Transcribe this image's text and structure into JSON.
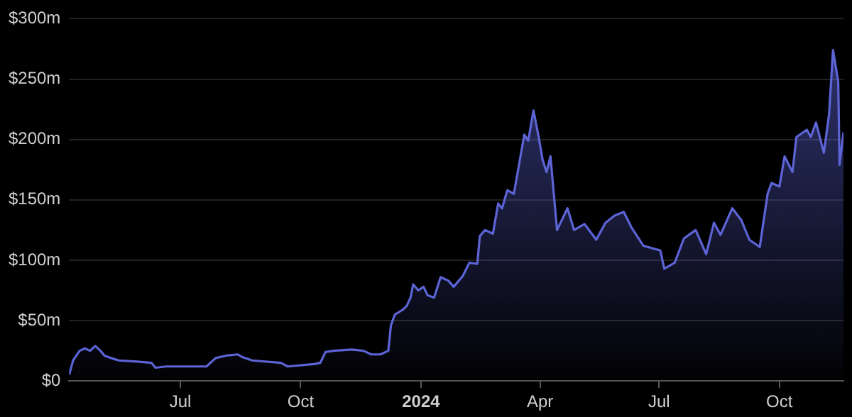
{
  "chart_data": {
    "type": "area",
    "x": [
      "2023-04-07",
      "2023-04-10",
      "2023-04-15",
      "2023-04-19",
      "2023-04-23",
      "2023-04-27",
      "2023-05-01",
      "2023-05-04",
      "2023-05-09",
      "2023-05-15",
      "2023-05-29",
      "2023-06-09",
      "2023-06-12",
      "2023-06-20",
      "2023-07-12",
      "2023-07-21",
      "2023-07-28",
      "2023-08-05",
      "2023-08-14",
      "2023-08-17",
      "2023-08-25",
      "2023-09-16",
      "2023-09-21",
      "2023-10-11",
      "2023-10-16",
      "2023-10-20",
      "2023-10-26",
      "2023-11-09",
      "2023-11-18",
      "2023-11-24",
      "2023-12-01",
      "2023-12-07",
      "2023-12-09",
      "2023-12-12",
      "2023-12-18",
      "2023-12-21",
      "2023-12-24",
      "2023-12-26",
      "2023-12-30",
      "2024-01-03",
      "2024-01-06",
      "2024-01-11",
      "2024-01-16",
      "2024-01-22",
      "2024-01-26",
      "2024-02-02",
      "2024-02-07",
      "2024-02-13",
      "2024-02-15",
      "2024-02-19",
      "2024-02-25",
      "2024-02-29",
      "2024-03-03",
      "2024-03-07",
      "2024-03-12",
      "2024-03-20",
      "2024-03-23",
      "2024-03-27",
      "2024-03-31",
      "2024-04-03",
      "2024-04-06",
      "2024-04-09",
      "2024-04-14",
      "2024-04-22",
      "2024-04-27",
      "2024-05-05",
      "2024-05-14",
      "2024-05-21",
      "2024-05-28",
      "2024-06-04",
      "2024-06-10",
      "2024-06-19",
      "2024-07-02",
      "2024-07-05",
      "2024-07-13",
      "2024-07-20",
      "2024-07-29",
      "2024-08-06",
      "2024-08-12",
      "2024-08-17",
      "2024-08-26",
      "2024-09-02",
      "2024-09-08",
      "2024-09-16",
      "2024-09-22",
      "2024-09-25",
      "2024-10-01",
      "2024-10-05",
      "2024-10-11",
      "2024-10-14",
      "2024-10-22",
      "2024-10-25",
      "2024-10-29",
      "2024-11-04",
      "2024-11-08",
      "2024-11-11",
      "2024-11-15",
      "2024-11-16",
      "2024-11-19"
    ],
    "series": [
      {
        "color": "#5c64d6",
        "values": [
          5,
          17,
          25,
          27,
          25,
          29,
          25,
          21,
          19,
          17,
          16,
          15,
          11,
          12,
          12,
          12,
          19,
          21,
          22,
          20,
          17,
          15,
          12,
          14,
          15,
          24,
          25,
          26,
          25,
          22,
          22,
          25,
          46,
          55,
          59,
          62,
          69,
          80,
          75,
          78,
          71,
          69,
          86,
          83,
          78,
          87,
          98,
          97,
          120,
          125,
          122,
          147,
          143,
          158,
          155,
          204,
          199,
          224,
          202,
          183,
          173,
          186,
          125,
          143,
          125,
          130,
          117,
          131,
          137,
          140,
          127,
          112,
          108,
          93,
          98,
          118,
          125,
          105,
          131,
          121,
          143,
          133,
          117,
          111,
          155,
          164,
          161,
          186,
          173,
          202,
          208,
          202,
          214,
          189,
          221,
          274,
          248,
          179,
          206
        ]
      }
    ],
    "xlim": [
      "2023-04-07",
      "2024-11-19"
    ],
    "xticks": [
      {
        "value": "2023-07-01",
        "label": "Jul"
      },
      {
        "value": "2023-10-01",
        "label": "Oct"
      },
      {
        "value": "2024-01-01",
        "label": "2024"
      },
      {
        "value": "2024-04-01",
        "label": "Apr"
      },
      {
        "value": "2024-07-01",
        "label": "Jul"
      },
      {
        "value": "2024-10-01",
        "label": "Oct"
      }
    ],
    "ylim": [
      0,
      300
    ],
    "yticks": [
      {
        "value": 0,
        "label": "$0"
      },
      {
        "value": 50,
        "label": "$50m"
      },
      {
        "value": 100,
        "label": "$100m"
      },
      {
        "value": 150,
        "label": "$150m"
      },
      {
        "value": 200,
        "label": "$200m"
      },
      {
        "value": 250,
        "label": "$250m"
      },
      {
        "value": 300,
        "label": "$300m"
      }
    ],
    "grid": "y"
  }
}
